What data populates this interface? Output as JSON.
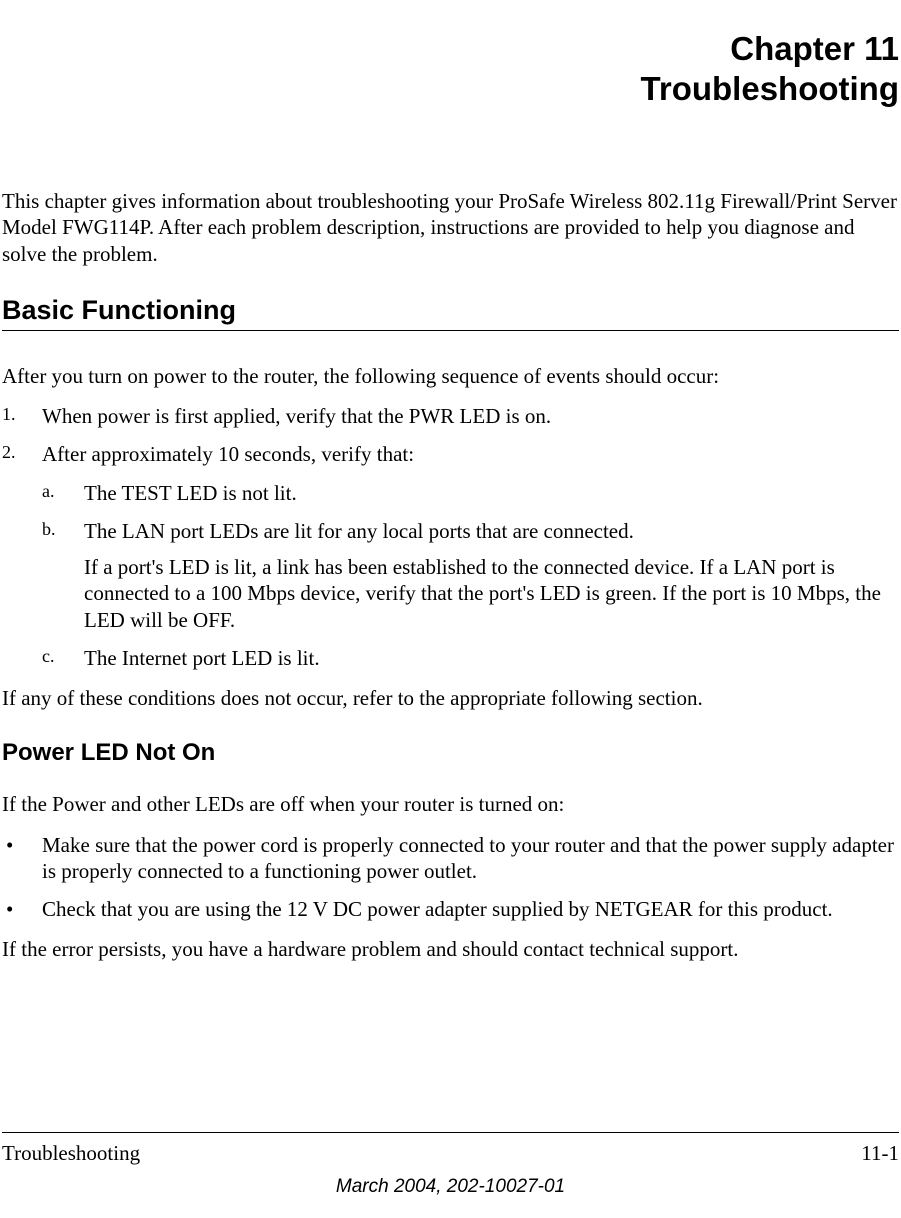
{
  "chapter": {
    "number": "Chapter 11",
    "title": "Troubleshooting"
  },
  "intro": "This chapter gives information about troubleshooting your ProSafe Wireless 802.11g  Firewall/Print Server Model FWG114P. After each problem description, instructions are provided to help you diagnose and solve the problem.",
  "section1": {
    "heading": "Basic Functioning",
    "lead": "After you turn on power to the router, the following sequence of events should occur:",
    "list": {
      "item1": {
        "marker": "1.",
        "text": "When power is first applied, verify that the PWR LED is on."
      },
      "item2": {
        "marker": "2.",
        "text": "After approximately 10 seconds, verify that:",
        "sub": {
          "a": {
            "marker": "a.",
            "text": "The TEST LED is not lit."
          },
          "b": {
            "marker": "b.",
            "text": "The LAN port LEDs are lit for any local ports that are connected.",
            "body": "If a port's LED is lit, a link has been established to the connected device. If a LAN port is connected to a 100 Mbps device, verify that the port's LED is green. If the port is 10 Mbps, the LED will be OFF."
          },
          "c": {
            "marker": "c.",
            "text": "The Internet port LED is lit."
          }
        }
      }
    },
    "trail": "If any of these conditions does not occur, refer to the appropriate following section."
  },
  "section2": {
    "heading": "Power LED Not On",
    "lead": "If the Power and other LEDs are off when your router is turned on:",
    "bullets": {
      "b1": "Make sure that the power cord is properly connected to your router and that the power supply adapter is properly connected to a functioning power outlet.",
      "b2": "Check that you are using the 12 V DC power adapter supplied by NETGEAR for this product."
    },
    "trail": "If the error persists, you have a hardware problem and should contact technical support."
  },
  "footer": {
    "left": "Troubleshooting",
    "right": "11-1",
    "center": "March 2004, 202-10027-01"
  }
}
